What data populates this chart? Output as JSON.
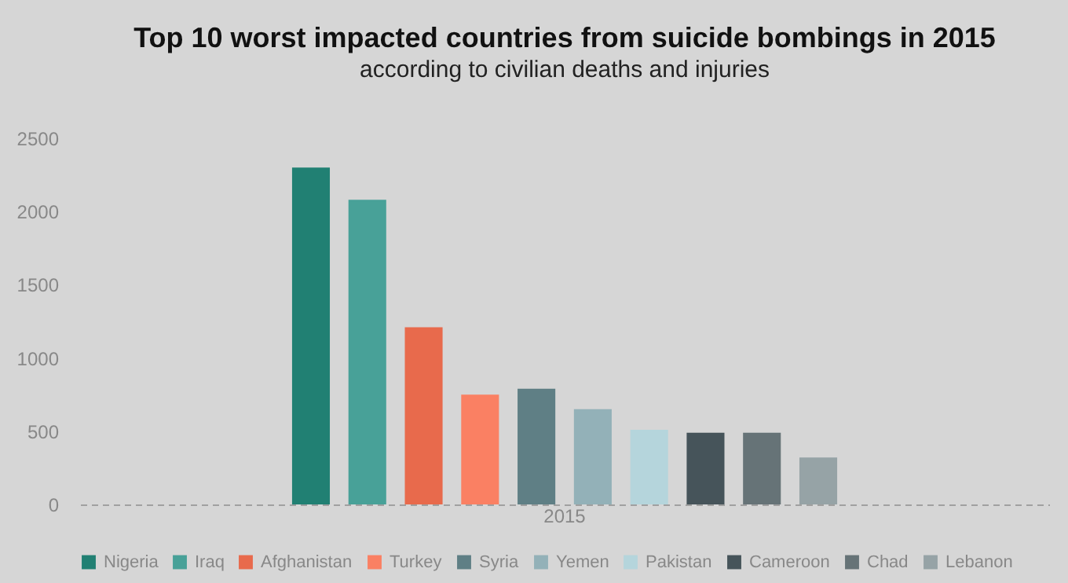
{
  "chart_data": {
    "type": "bar",
    "title": "Top 10 worst impacted countries from suicide bombings in 2015",
    "subtitle": "according to civilian deaths and injuries",
    "categories": [
      "2015"
    ],
    "series": [
      {
        "name": "Nigeria",
        "color": "#218073",
        "values": [
          2300
        ]
      },
      {
        "name": "Iraq",
        "color": "#48a198",
        "values": [
          2080
        ]
      },
      {
        "name": "Afghanistan",
        "color": "#e86a4c",
        "values": [
          1210
        ]
      },
      {
        "name": "Turkey",
        "color": "#fa8063",
        "values": [
          750
        ]
      },
      {
        "name": "Syria",
        "color": "#5f7f85",
        "values": [
          790
        ]
      },
      {
        "name": "Yemen",
        "color": "#93b1b8",
        "values": [
          650
        ]
      },
      {
        "name": "Pakistan",
        "color": "#b5d5dc",
        "values": [
          510
        ]
      },
      {
        "name": "Cameroon",
        "color": "#46545a",
        "values": [
          490
        ]
      },
      {
        "name": "Chad",
        "color": "#667377",
        "values": [
          490
        ]
      },
      {
        "name": "Lebanon",
        "color": "#96a3a6",
        "values": [
          320
        ]
      }
    ],
    "ylim": [
      0,
      2500
    ],
    "yticks": [
      0,
      500,
      1000,
      1500,
      2000,
      2500
    ],
    "grid": false,
    "legend": "bottom"
  }
}
